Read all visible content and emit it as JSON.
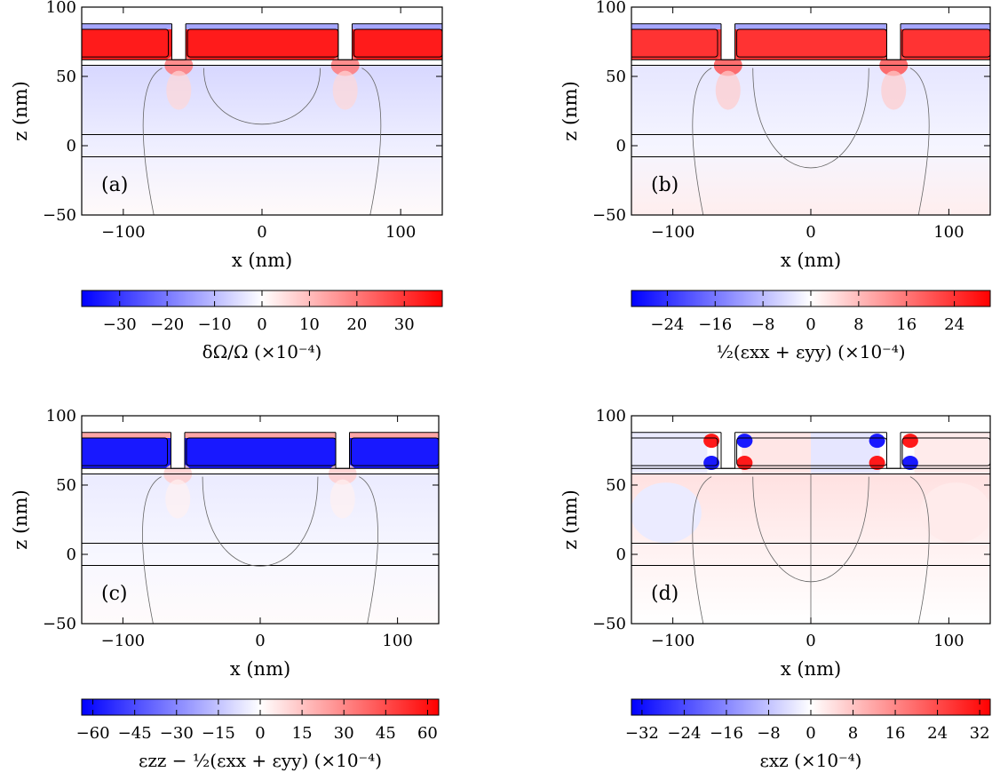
{
  "figure": {
    "x_axis_label": "x (nm)",
    "z_axis_label": "z (nm)"
  },
  "chart_data": [
    {
      "type": "heatmap",
      "panel_label": "(a)",
      "xlabel": "x (nm)",
      "ylabel": "z (nm)",
      "xlim": [
        -130,
        130
      ],
      "ylim": [
        -50,
        100
      ],
      "x_ticks": [
        -100,
        0,
        100
      ],
      "y_ticks": [
        -50,
        0,
        50,
        100
      ],
      "x_tick_labels": [
        "−100",
        "0",
        "100"
      ],
      "y_tick_labels": [
        "−50",
        "0",
        "50",
        "100"
      ],
      "colorbar": {
        "label": "δΩ/Ω (×10⁻⁴)",
        "min": -38,
        "max": 38,
        "ticks": [
          -30,
          -20,
          -10,
          0,
          10,
          20,
          30
        ],
        "tick_labels": [
          "−30",
          "−20",
          "−10",
          "0",
          "10",
          "20",
          "30"
        ],
        "colormap": "bwr"
      },
      "field": {
        "layer_value": 34,
        "neck_value": 20,
        "substrate_value": -6,
        "deep_value": 0.8,
        "pattern": "symmetric"
      },
      "colors": {
        "negative": "#0000ff",
        "zero": "#ffffff",
        "positive": "#ff0000"
      }
    },
    {
      "type": "heatmap",
      "panel_label": "(b)",
      "xlabel": "x (nm)",
      "ylabel": "z (nm)",
      "xlim": [
        -130,
        130
      ],
      "ylim": [
        -50,
        100
      ],
      "x_ticks": [
        -100,
        0,
        100
      ],
      "y_ticks": [
        -50,
        0,
        50,
        100
      ],
      "x_tick_labels": [
        "−100",
        "0",
        "100"
      ],
      "y_tick_labels": [
        "−50",
        "0",
        "50",
        "100"
      ],
      "colorbar": {
        "label": "½(εxx + εyy) (×10⁻⁴)",
        "min": -30,
        "max": 30,
        "ticks": [
          -24,
          -16,
          -8,
          0,
          8,
          16,
          24
        ],
        "tick_labels": [
          "−24",
          "−16",
          "−8",
          "0",
          "8",
          "16",
          "24"
        ],
        "colormap": "bwr"
      },
      "field": {
        "layer_value": 24,
        "neck_value": 20,
        "substrate_value": -3,
        "deep_value": 2,
        "pattern": "symmetric"
      },
      "colors": {
        "negative": "#0000ff",
        "zero": "#ffffff",
        "positive": "#ff0000"
      }
    },
    {
      "type": "heatmap",
      "panel_label": "(c)",
      "xlabel": "x (nm)",
      "ylabel": "z (nm)",
      "xlim": [
        -130,
        130
      ],
      "ylim": [
        -50,
        100
      ],
      "x_ticks": [
        -100,
        0,
        100
      ],
      "y_ticks": [
        -50,
        0,
        50,
        100
      ],
      "x_tick_labels": [
        "−100",
        "0",
        "100"
      ],
      "y_tick_labels": [
        "−50",
        "0",
        "50",
        "100"
      ],
      "colorbar": {
        "label": "εzz − ½(εxx + εyy) (×10⁻⁴)",
        "min": -64,
        "max": 64,
        "ticks": [
          -60,
          -45,
          -30,
          -15,
          0,
          15,
          30,
          45,
          60
        ],
        "tick_labels": [
          "−60",
          "−45",
          "−30",
          "−15",
          "0",
          "15",
          "30",
          "45",
          "60"
        ],
        "colormap": "bwr"
      },
      "field": {
        "layer_value": -58,
        "neck_value": 12,
        "substrate_value": -5,
        "deep_value": 1,
        "pattern": "symmetric"
      },
      "colors": {
        "negative": "#0000ff",
        "zero": "#ffffff",
        "positive": "#ff0000"
      }
    },
    {
      "type": "heatmap",
      "panel_label": "(d)",
      "xlabel": "x (nm)",
      "ylabel": "z (nm)",
      "xlim": [
        -130,
        130
      ],
      "ylim": [
        -50,
        100
      ],
      "x_ticks": [
        -100,
        0,
        100
      ],
      "y_ticks": [
        -50,
        0,
        50,
        100
      ],
      "x_tick_labels": [
        "−100",
        "0",
        "100"
      ],
      "y_tick_labels": [
        "−50",
        "0",
        "50",
        "100"
      ],
      "colorbar": {
        "label": "εxz (×10⁻⁴)",
        "min": -34,
        "max": 34,
        "ticks": [
          -32,
          -24,
          -16,
          -8,
          0,
          8,
          16,
          24,
          32
        ],
        "tick_labels": [
          "−32",
          "−24",
          "−16",
          "−8",
          "0",
          "8",
          "16",
          "24",
          "32"
        ],
        "colormap": "bwr"
      },
      "field": {
        "layer_value": 0,
        "neck_value": 30,
        "substrate_value": 4,
        "deep_value": 0,
        "pattern": "antisymmetric"
      },
      "colors": {
        "negative": "#0000ff",
        "zero": "#ffffff",
        "positive": "#ff0000"
      }
    }
  ]
}
